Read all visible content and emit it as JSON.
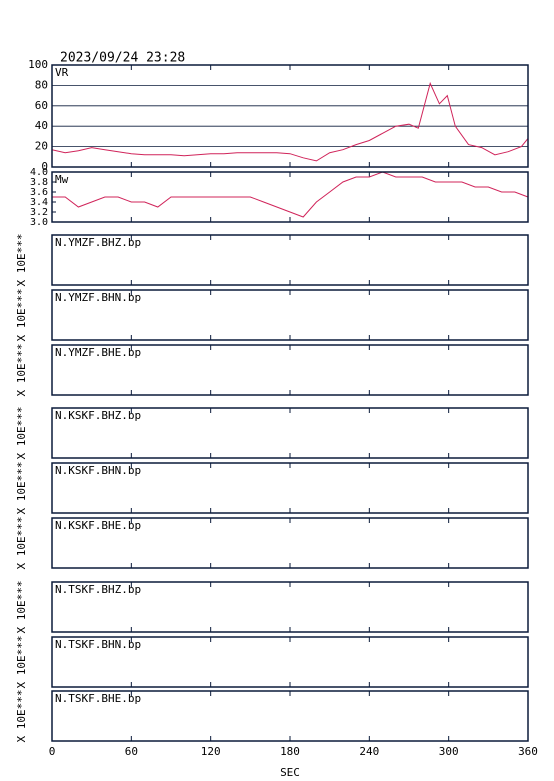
{
  "chart_data": [
    {
      "type": "line",
      "title": "2023/09/24 23:28",
      "label": "VR",
      "xlim": [
        0,
        360
      ],
      "xticks": [
        0,
        60,
        120,
        180,
        240,
        300,
        360
      ],
      "ylim": [
        0,
        100
      ],
      "yticks": [
        0,
        20,
        40,
        60,
        80,
        100
      ],
      "grid": true,
      "x": [
        0,
        10,
        20,
        30,
        40,
        50,
        60,
        70,
        80,
        90,
        100,
        110,
        120,
        130,
        140,
        150,
        160,
        170,
        180,
        190,
        200,
        210,
        220,
        230,
        240,
        250,
        260,
        270,
        277,
        286,
        293,
        299,
        305,
        315,
        325,
        335,
        345,
        355,
        360
      ],
      "series": [
        {
          "color": "#d0245a",
          "values": [
            17,
            14,
            16,
            19,
            17,
            15,
            13,
            12,
            12,
            12,
            11,
            12,
            13,
            13,
            14,
            14,
            14,
            14,
            13,
            9,
            6,
            14,
            17,
            22,
            26,
            33,
            40,
            42,
            38,
            82,
            62,
            70,
            40,
            22,
            19,
            12,
            15,
            20,
            28
          ]
        }
      ]
    },
    {
      "type": "line",
      "label": "Mw",
      "xlim": [
        0,
        360
      ],
      "xticks": [
        0,
        60,
        120,
        180,
        240,
        300,
        360
      ],
      "ylim": [
        3,
        4
      ],
      "yticks": [
        {
          "value": 3,
          "label": "3.0"
        },
        3.2,
        3.4,
        3.6,
        3.8,
        {
          "value": 4,
          "label": "4.0"
        }
      ],
      "x": [
        0,
        10,
        20,
        30,
        40,
        50,
        60,
        70,
        80,
        90,
        100,
        110,
        120,
        130,
        140,
        150,
        160,
        170,
        180,
        190,
        200,
        210,
        220,
        230,
        240,
        250,
        260,
        270,
        280,
        290,
        300,
        310,
        320,
        330,
        340,
        350,
        360
      ],
      "series": [
        {
          "color": "#d0245a",
          "values": [
            3.5,
            3.5,
            3.3,
            3.4,
            3.5,
            3.5,
            3.4,
            3.4,
            3.3,
            3.5,
            3.5,
            3.5,
            3.5,
            3.5,
            3.5,
            3.5,
            3.4,
            3.3,
            3.2,
            3.1,
            3.4,
            3.6,
            3.8,
            3.9,
            3.9,
            4.0,
            3.9,
            3.9,
            3.9,
            3.8,
            3.8,
            3.8,
            3.7,
            3.7,
            3.6,
            3.6,
            3.5
          ]
        }
      ]
    },
    {
      "type": "waveform",
      "label": "N.YMZF.BHZ.bp",
      "ylabel": "X 10E***",
      "xlim": [
        0,
        360
      ],
      "xticks": [
        0,
        60,
        120,
        180,
        240,
        300,
        360
      ]
    },
    {
      "type": "waveform",
      "label": "N.YMZF.BHN.bp",
      "ylabel": "X 10E***",
      "xlim": [
        0,
        360
      ],
      "xticks": [
        0,
        60,
        120,
        180,
        240,
        300,
        360
      ]
    },
    {
      "type": "waveform",
      "label": "N.YMZF.BHE.bp",
      "ylabel": "X 10E***",
      "xlim": [
        0,
        360
      ],
      "xticks": [
        0,
        60,
        120,
        180,
        240,
        300,
        360
      ]
    },
    {
      "type": "waveform",
      "label": "N.KSKF.BHZ.bp",
      "ylabel": "X 10E***",
      "xlim": [
        0,
        360
      ],
      "xticks": [
        0,
        60,
        120,
        180,
        240,
        300,
        360
      ]
    },
    {
      "type": "waveform",
      "label": "N.KSKF.BHN.bp",
      "ylabel": "X 10E***",
      "xlim": [
        0,
        360
      ],
      "xticks": [
        0,
        60,
        120,
        180,
        240,
        300,
        360
      ]
    },
    {
      "type": "waveform",
      "label": "N.KSKF.BHE.bp",
      "ylabel": "X 10E***",
      "xlim": [
        0,
        360
      ],
      "xticks": [
        0,
        60,
        120,
        180,
        240,
        300,
        360
      ]
    },
    {
      "type": "waveform",
      "label": "N.TSKF.BHZ.bp",
      "ylabel": "X 10E***",
      "xlim": [
        0,
        360
      ],
      "xticks": [
        0,
        60,
        120,
        180,
        240,
        300,
        360
      ]
    },
    {
      "type": "waveform",
      "label": "N.TSKF.BHN.bp",
      "ylabel": "X 10E***",
      "xlim": [
        0,
        360
      ],
      "xticks": [
        0,
        60,
        120,
        180,
        240,
        300,
        360
      ]
    },
    {
      "type": "waveform",
      "label": "N.TSKF.BHE.bp",
      "ylabel": "X 10E***",
      "xlim": [
        0,
        360
      ],
      "xticks": [
        0,
        60,
        120,
        180,
        240,
        300,
        360
      ],
      "xlabel": "SEC"
    }
  ]
}
